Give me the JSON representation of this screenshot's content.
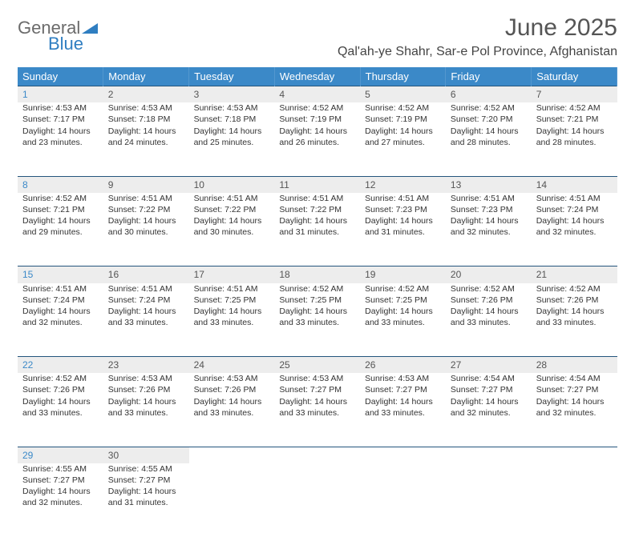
{
  "brand": {
    "part1": "General",
    "part2": "Blue"
  },
  "title": "June 2025",
  "location": "Qal'ah-ye Shahr, Sar-e Pol Province, Afghanistan",
  "colors": {
    "header_bg": "#3b89c8",
    "header_text": "#ffffff",
    "daynum_bg": "#ededed",
    "border_top": "#24557d",
    "brand_gray": "#6b6b6b",
    "brand_blue": "#2f7ec1",
    "text": "#333333"
  },
  "weekdays": [
    "Sunday",
    "Monday",
    "Tuesday",
    "Wednesday",
    "Thursday",
    "Friday",
    "Saturday"
  ],
  "weeks": [
    [
      {
        "day": "1",
        "sunrise": "4:53 AM",
        "sunset": "7:17 PM",
        "daylight": "14 hours and 23 minutes."
      },
      {
        "day": "2",
        "sunrise": "4:53 AM",
        "sunset": "7:18 PM",
        "daylight": "14 hours and 24 minutes."
      },
      {
        "day": "3",
        "sunrise": "4:53 AM",
        "sunset": "7:18 PM",
        "daylight": "14 hours and 25 minutes."
      },
      {
        "day": "4",
        "sunrise": "4:52 AM",
        "sunset": "7:19 PM",
        "daylight": "14 hours and 26 minutes."
      },
      {
        "day": "5",
        "sunrise": "4:52 AM",
        "sunset": "7:19 PM",
        "daylight": "14 hours and 27 minutes."
      },
      {
        "day": "6",
        "sunrise": "4:52 AM",
        "sunset": "7:20 PM",
        "daylight": "14 hours and 28 minutes."
      },
      {
        "day": "7",
        "sunrise": "4:52 AM",
        "sunset": "7:21 PM",
        "daylight": "14 hours and 28 minutes."
      }
    ],
    [
      {
        "day": "8",
        "sunrise": "4:52 AM",
        "sunset": "7:21 PM",
        "daylight": "14 hours and 29 minutes."
      },
      {
        "day": "9",
        "sunrise": "4:51 AM",
        "sunset": "7:22 PM",
        "daylight": "14 hours and 30 minutes."
      },
      {
        "day": "10",
        "sunrise": "4:51 AM",
        "sunset": "7:22 PM",
        "daylight": "14 hours and 30 minutes."
      },
      {
        "day": "11",
        "sunrise": "4:51 AM",
        "sunset": "7:22 PM",
        "daylight": "14 hours and 31 minutes."
      },
      {
        "day": "12",
        "sunrise": "4:51 AM",
        "sunset": "7:23 PM",
        "daylight": "14 hours and 31 minutes."
      },
      {
        "day": "13",
        "sunrise": "4:51 AM",
        "sunset": "7:23 PM",
        "daylight": "14 hours and 32 minutes."
      },
      {
        "day": "14",
        "sunrise": "4:51 AM",
        "sunset": "7:24 PM",
        "daylight": "14 hours and 32 minutes."
      }
    ],
    [
      {
        "day": "15",
        "sunrise": "4:51 AM",
        "sunset": "7:24 PM",
        "daylight": "14 hours and 32 minutes."
      },
      {
        "day": "16",
        "sunrise": "4:51 AM",
        "sunset": "7:24 PM",
        "daylight": "14 hours and 33 minutes."
      },
      {
        "day": "17",
        "sunrise": "4:51 AM",
        "sunset": "7:25 PM",
        "daylight": "14 hours and 33 minutes."
      },
      {
        "day": "18",
        "sunrise": "4:52 AM",
        "sunset": "7:25 PM",
        "daylight": "14 hours and 33 minutes."
      },
      {
        "day": "19",
        "sunrise": "4:52 AM",
        "sunset": "7:25 PM",
        "daylight": "14 hours and 33 minutes."
      },
      {
        "day": "20",
        "sunrise": "4:52 AM",
        "sunset": "7:26 PM",
        "daylight": "14 hours and 33 minutes."
      },
      {
        "day": "21",
        "sunrise": "4:52 AM",
        "sunset": "7:26 PM",
        "daylight": "14 hours and 33 minutes."
      }
    ],
    [
      {
        "day": "22",
        "sunrise": "4:52 AM",
        "sunset": "7:26 PM",
        "daylight": "14 hours and 33 minutes."
      },
      {
        "day": "23",
        "sunrise": "4:53 AM",
        "sunset": "7:26 PM",
        "daylight": "14 hours and 33 minutes."
      },
      {
        "day": "24",
        "sunrise": "4:53 AM",
        "sunset": "7:26 PM",
        "daylight": "14 hours and 33 minutes."
      },
      {
        "day": "25",
        "sunrise": "4:53 AM",
        "sunset": "7:27 PM",
        "daylight": "14 hours and 33 minutes."
      },
      {
        "day": "26",
        "sunrise": "4:53 AM",
        "sunset": "7:27 PM",
        "daylight": "14 hours and 33 minutes."
      },
      {
        "day": "27",
        "sunrise": "4:54 AM",
        "sunset": "7:27 PM",
        "daylight": "14 hours and 32 minutes."
      },
      {
        "day": "28",
        "sunrise": "4:54 AM",
        "sunset": "7:27 PM",
        "daylight": "14 hours and 32 minutes."
      }
    ],
    [
      {
        "day": "29",
        "sunrise": "4:55 AM",
        "sunset": "7:27 PM",
        "daylight": "14 hours and 32 minutes."
      },
      {
        "day": "30",
        "sunrise": "4:55 AM",
        "sunset": "7:27 PM",
        "daylight": "14 hours and 31 minutes."
      },
      null,
      null,
      null,
      null,
      null
    ]
  ],
  "labels": {
    "sunrise": "Sunrise:",
    "sunset": "Sunset:",
    "daylight": "Daylight:"
  }
}
